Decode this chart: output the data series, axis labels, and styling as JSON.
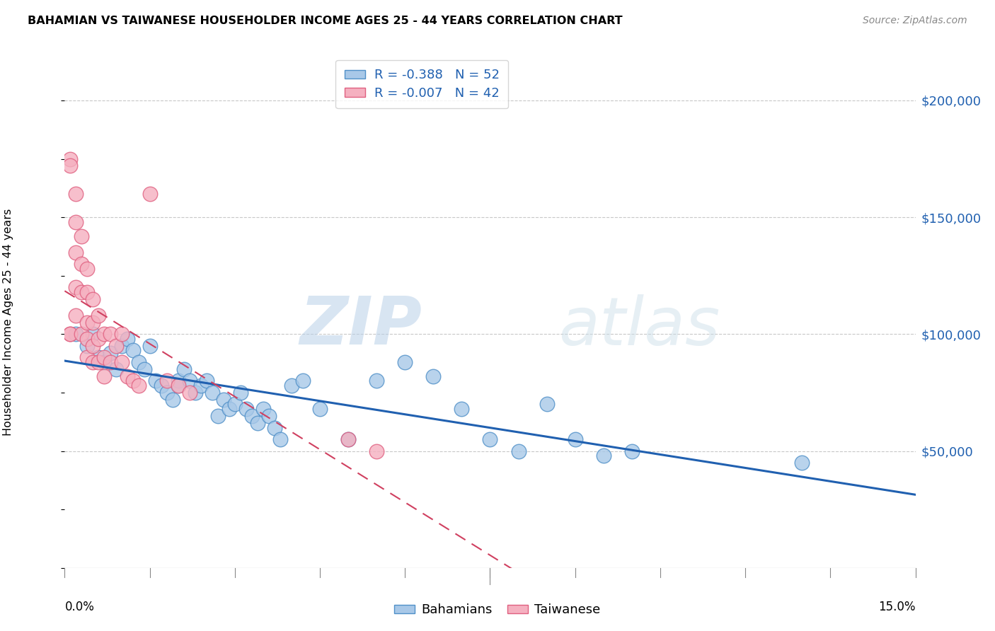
{
  "title": "BAHAMIAN VS TAIWANESE HOUSEHOLDER INCOME AGES 25 - 44 YEARS CORRELATION CHART",
  "source": "Source: ZipAtlas.com",
  "ylabel": "Householder Income Ages 25 - 44 years",
  "ytick_values": [
    50000,
    100000,
    150000,
    200000
  ],
  "ylim": [
    0,
    220000
  ],
  "xlim": [
    0.0,
    0.15
  ],
  "legend_line1_r": "-0.388",
  "legend_line1_n": "52",
  "legend_line2_r": "-0.007",
  "legend_line2_n": "42",
  "bahamian_color": "#a8c8e8",
  "taiwanese_color": "#f5b0c0",
  "bahamian_edge_color": "#5090c8",
  "taiwanese_edge_color": "#e06080",
  "bahamian_line_color": "#2060b0",
  "taiwanese_line_color": "#d04060",
  "grid_color": "#c8c8c8",
  "background_color": "#ffffff",
  "watermark_zip": "ZIP",
  "watermark_atlas": "atlas",
  "bahamian_x": [
    0.002,
    0.004,
    0.005,
    0.006,
    0.007,
    0.008,
    0.009,
    0.01,
    0.011,
    0.012,
    0.013,
    0.014,
    0.015,
    0.016,
    0.017,
    0.018,
    0.019,
    0.02,
    0.02,
    0.021,
    0.022,
    0.023,
    0.024,
    0.025,
    0.026,
    0.027,
    0.028,
    0.029,
    0.03,
    0.031,
    0.032,
    0.033,
    0.034,
    0.035,
    0.036,
    0.037,
    0.038,
    0.04,
    0.042,
    0.045,
    0.05,
    0.055,
    0.06,
    0.065,
    0.07,
    0.075,
    0.08,
    0.085,
    0.09,
    0.095,
    0.1,
    0.13
  ],
  "bahamian_y": [
    100000,
    95000,
    100000,
    90000,
    88000,
    92000,
    85000,
    95000,
    98000,
    93000,
    88000,
    85000,
    95000,
    80000,
    78000,
    75000,
    72000,
    80000,
    78000,
    85000,
    80000,
    75000,
    78000,
    80000,
    75000,
    65000,
    72000,
    68000,
    70000,
    75000,
    68000,
    65000,
    62000,
    68000,
    65000,
    60000,
    55000,
    78000,
    80000,
    68000,
    55000,
    80000,
    88000,
    82000,
    68000,
    55000,
    50000,
    70000,
    55000,
    48000,
    50000,
    45000
  ],
  "taiwanese_x": [
    0.001,
    0.001,
    0.001,
    0.001,
    0.002,
    0.002,
    0.002,
    0.002,
    0.002,
    0.003,
    0.003,
    0.003,
    0.003,
    0.004,
    0.004,
    0.004,
    0.004,
    0.004,
    0.005,
    0.005,
    0.005,
    0.005,
    0.006,
    0.006,
    0.006,
    0.007,
    0.007,
    0.007,
    0.008,
    0.008,
    0.009,
    0.01,
    0.01,
    0.011,
    0.012,
    0.013,
    0.015,
    0.018,
    0.02,
    0.022,
    0.05,
    0.055
  ],
  "taiwanese_y": [
    175000,
    172000,
    100000,
    100000,
    160000,
    148000,
    135000,
    120000,
    108000,
    142000,
    130000,
    118000,
    100000,
    128000,
    118000,
    105000,
    98000,
    90000,
    115000,
    105000,
    95000,
    88000,
    108000,
    98000,
    88000,
    100000,
    90000,
    82000,
    100000,
    88000,
    95000,
    100000,
    88000,
    82000,
    80000,
    78000,
    160000,
    80000,
    78000,
    75000,
    55000,
    50000
  ]
}
